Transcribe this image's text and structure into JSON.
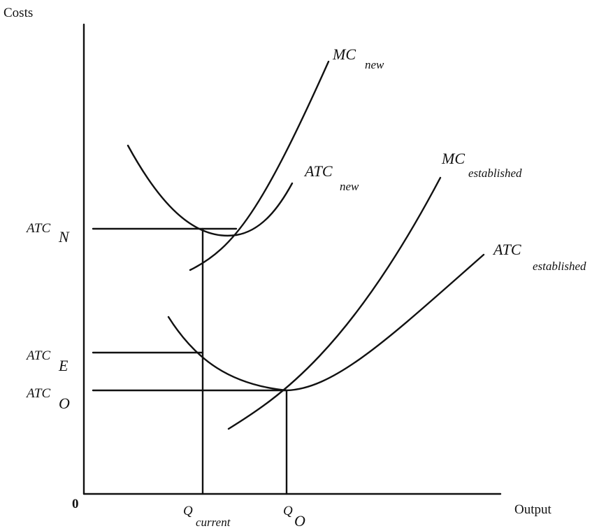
{
  "axes": {
    "y_label": "Costs",
    "x_label": "Output",
    "origin_label": "0"
  },
  "curves": {
    "mc_new": {
      "main": "MC",
      "sub": "new"
    },
    "atc_new": {
      "main": "ATC",
      "sub": "new"
    },
    "mc_established": {
      "main": "MC",
      "sub": "established"
    },
    "atc_established": {
      "main": "ATC",
      "sub": "established"
    }
  },
  "levels": {
    "atc_n": {
      "main": "ATC",
      "sub": "N"
    },
    "atc_e": {
      "main": "ATC",
      "sub": "E"
    },
    "atc_o": {
      "main": "ATC",
      "sub": "O"
    }
  },
  "quantities": {
    "q_current": {
      "main": "Q",
      "sub": "current"
    },
    "q_o": {
      "main": "Q",
      "sub": "O"
    }
  },
  "colors": {
    "ink": "#111111",
    "background": "#ffffff"
  }
}
